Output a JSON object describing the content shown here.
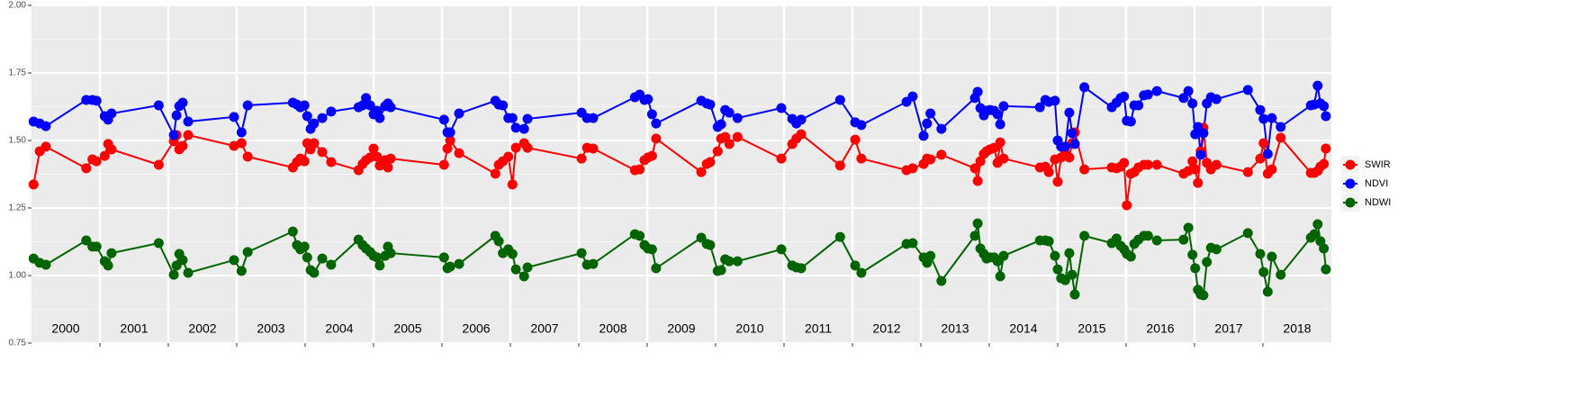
{
  "chart_data": {
    "type": "line",
    "x": [
      2000.03,
      2000.12,
      2000.21,
      2000.8,
      2000.89,
      2000.95,
      2001.07,
      2001.12,
      2001.17,
      2001.86,
      2002.08,
      2002.12,
      2002.16,
      2002.21,
      2002.29,
      2002.96,
      2003.07,
      2003.16,
      2003.82,
      2003.88,
      2003.93,
      2003.99,
      2004.03,
      2004.08,
      2004.13,
      2004.25,
      2004.38,
      2004.78,
      2004.84,
      2004.89,
      2004.95,
      2005,
      2005.05,
      2005.09,
      2005.17,
      2005.21,
      2005.25,
      2006.03,
      2006.08,
      2006.12,
      2006.25,
      2006.78,
      2006.83,
      2006.89,
      2006.97,
      2007.03,
      2007.08,
      2007.2,
      2007.25,
      2008.04,
      2008.12,
      2008.21,
      2008.82,
      2008.89,
      2008.96,
      2009.01,
      2009.07,
      2009.13,
      2009.79,
      2009.87,
      2009.92,
      2010.03,
      2010.08,
      2010.14,
      2010.2,
      2010.32,
      2010.96,
      2011.12,
      2011.18,
      2011.25,
      2011.82,
      2012.04,
      2012.13,
      2012.79,
      2012.88,
      2013.04,
      2013.09,
      2013.14,
      2013.3,
      2013.79,
      2013.83,
      2013.87,
      2013.92,
      2013.96,
      2014.01,
      2014.07,
      2014.12,
      2014.16,
      2014.21,
      2014.74,
      2014.82,
      2014.87,
      2014.96,
      2015,
      2015.05,
      2015.11,
      2015.17,
      2015.21,
      2015.25,
      2015.39,
      2015.79,
      2015.86,
      2015.92,
      2015.97,
      2016.01,
      2016.07,
      2016.12,
      2016.18,
      2016.26,
      2016.32,
      2016.45,
      2016.84,
      2016.91,
      2016.97,
      2017.01,
      2017.05,
      2017.09,
      2017.13,
      2017.18,
      2017.24,
      2017.32,
      2017.78,
      2017.96,
      2018.01,
      2018.07,
      2018.13,
      2018.26,
      2018.7,
      2018.75,
      2018.8,
      2018.84,
      2018.89,
      2018.92
    ],
    "series": [
      {
        "name": "SWIR",
        "color": "#ff0000",
        "values": [
          1.337,
          1.46,
          1.477,
          1.397,
          1.43,
          1.423,
          1.443,
          1.487,
          1.467,
          1.41,
          1.497,
          1.52,
          1.467,
          1.48,
          1.52,
          1.48,
          1.49,
          1.44,
          1.4,
          1.42,
          1.433,
          1.423,
          1.49,
          1.467,
          1.49,
          1.457,
          1.42,
          1.39,
          1.413,
          1.427,
          1.437,
          1.47,
          1.44,
          1.407,
          1.427,
          1.4,
          1.433,
          1.41,
          1.47,
          1.5,
          1.453,
          1.377,
          1.41,
          1.423,
          1.44,
          1.337,
          1.473,
          1.49,
          1.473,
          1.433,
          1.473,
          1.47,
          1.39,
          1.393,
          1.427,
          1.437,
          1.443,
          1.507,
          1.383,
          1.413,
          1.42,
          1.46,
          1.507,
          1.513,
          1.487,
          1.513,
          1.433,
          1.487,
          1.507,
          1.523,
          1.407,
          1.503,
          1.433,
          1.39,
          1.397,
          1.413,
          1.433,
          1.43,
          1.447,
          1.397,
          1.35,
          1.423,
          1.45,
          1.46,
          1.467,
          1.473,
          1.417,
          1.493,
          1.433,
          1.4,
          1.403,
          1.383,
          1.43,
          1.347,
          1.437,
          1.453,
          1.437,
          1.49,
          1.53,
          1.393,
          1.4,
          1.397,
          1.403,
          1.417,
          1.26,
          1.377,
          1.383,
          1.4,
          1.41,
          1.41,
          1.41,
          1.377,
          1.387,
          1.423,
          1.393,
          1.343,
          1.46,
          1.547,
          1.417,
          1.393,
          1.41,
          1.383,
          1.433,
          1.49,
          1.377,
          1.393,
          1.51,
          1.38,
          1.38,
          1.387,
          1.403,
          1.413,
          1.47
        ]
      },
      {
        "name": "NDVI",
        "color": "#0000ff",
        "values": [
          1.57,
          1.563,
          1.553,
          1.65,
          1.65,
          1.647,
          1.59,
          1.577,
          1.6,
          1.63,
          1.52,
          1.593,
          1.627,
          1.64,
          1.57,
          1.587,
          1.53,
          1.63,
          1.64,
          1.633,
          1.623,
          1.63,
          1.59,
          1.543,
          1.563,
          1.583,
          1.607,
          1.623,
          1.63,
          1.657,
          1.63,
          1.597,
          1.61,
          1.583,
          1.627,
          1.637,
          1.623,
          1.577,
          1.53,
          1.53,
          1.6,
          1.647,
          1.633,
          1.63,
          1.583,
          1.583,
          1.547,
          1.543,
          1.58,
          1.603,
          1.583,
          1.583,
          1.66,
          1.67,
          1.65,
          1.653,
          1.597,
          1.563,
          1.647,
          1.637,
          1.633,
          1.55,
          1.56,
          1.613,
          1.603,
          1.583,
          1.62,
          1.58,
          1.563,
          1.577,
          1.65,
          1.567,
          1.557,
          1.643,
          1.663,
          1.517,
          1.563,
          1.6,
          1.543,
          1.657,
          1.68,
          1.62,
          1.593,
          1.61,
          1.613,
          1.61,
          1.597,
          1.56,
          1.627,
          1.623,
          1.65,
          1.643,
          1.647,
          1.5,
          1.477,
          1.477,
          1.603,
          1.527,
          1.487,
          1.697,
          1.623,
          1.64,
          1.657,
          1.663,
          1.573,
          1.57,
          1.63,
          1.63,
          1.667,
          1.67,
          1.683,
          1.657,
          1.683,
          1.637,
          1.523,
          1.55,
          1.447,
          1.527,
          1.637,
          1.66,
          1.653,
          1.687,
          1.613,
          1.58,
          1.45,
          1.583,
          1.55,
          1.63,
          1.633,
          1.703,
          1.637,
          1.627,
          1.59
        ]
      },
      {
        "name": "NDWI",
        "color": "#006400",
        "values": [
          1.063,
          1.047,
          1.04,
          1.13,
          1.107,
          1.107,
          1.053,
          1.037,
          1.083,
          1.12,
          1.003,
          1.037,
          1.08,
          1.057,
          1.01,
          1.057,
          1.017,
          1.087,
          1.163,
          1.113,
          1.097,
          1.107,
          1.067,
          1.02,
          1.01,
          1.063,
          1.04,
          1.133,
          1.113,
          1.1,
          1.087,
          1.073,
          1.067,
          1.037,
          1.073,
          1.107,
          1.083,
          1.067,
          1.027,
          1.033,
          1.043,
          1.147,
          1.127,
          1.083,
          1.097,
          1.08,
          1.023,
          0.997,
          1.03,
          1.083,
          1.04,
          1.043,
          1.153,
          1.147,
          1.113,
          1.1,
          1.097,
          1.027,
          1.14,
          1.117,
          1.113,
          1.017,
          1.02,
          1.06,
          1.053,
          1.053,
          1.097,
          1.037,
          1.03,
          1.027,
          1.143,
          1.037,
          1.01,
          1.117,
          1.12,
          1.067,
          1.047,
          1.073,
          0.98,
          1.147,
          1.193,
          1.1,
          1.08,
          1.063,
          1.067,
          1.067,
          1.053,
          0.997,
          1.073,
          1.13,
          1.13,
          1.127,
          1.073,
          1.023,
          0.99,
          0.983,
          1.083,
          1.003,
          0.93,
          1.147,
          1.12,
          1.137,
          1.11,
          1.097,
          1.08,
          1.07,
          1.117,
          1.133,
          1.147,
          1.147,
          1.13,
          1.133,
          1.177,
          1.077,
          1.027,
          0.947,
          0.93,
          0.927,
          1.05,
          1.103,
          1.097,
          1.157,
          1.08,
          1.013,
          0.94,
          1.07,
          1.003,
          1.14,
          1.153,
          1.19,
          1.127,
          1.1,
          1.023
        ]
      }
    ],
    "xlim": [
      2000,
      2019
    ],
    "xticks": [
      2001,
      2002,
      2003,
      2004,
      2005,
      2006,
      2007,
      2008,
      2009,
      2010,
      2011,
      2012,
      2013,
      2014,
      2015,
      2016,
      2017,
      2018
    ],
    "year_labels": [
      "2000",
      "2001",
      "2002",
      "2003",
      "2004",
      "2005",
      "2006",
      "2007",
      "2008",
      "2009",
      "2010",
      "2011",
      "2012",
      "2013",
      "2014",
      "2015",
      "2016",
      "2017",
      "2018"
    ],
    "ylim": [
      0.75,
      2
    ],
    "yticks": [
      {
        "value": 0.75,
        "label": "0.75"
      },
      {
        "value": 1,
        "label": "1.00"
      },
      {
        "value": 1.25,
        "label": "1.25"
      },
      {
        "value": 1.5,
        "label": "1.50"
      },
      {
        "value": 1.75,
        "label": "1.75"
      },
      {
        "value": 2,
        "label": "2.00"
      }
    ],
    "grid": true,
    "legend": "right"
  }
}
